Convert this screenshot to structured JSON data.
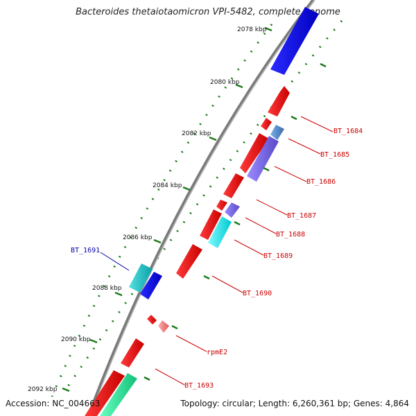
{
  "title": "Bacteroides thetaiotaomicron VPI-5482, complete genome",
  "footer": {
    "accession": "Accession: NC_004663",
    "summary": "Topology: circular; Length: 6,260,361 bp; Genes: 4,864"
  },
  "colors": {
    "backbone": "#888888",
    "tick": "#1a7a1a",
    "label_red": "#cc0000",
    "label_blue": "#0000aa"
  },
  "ticks": [
    {
      "label": "2078 kbp"
    },
    {
      "label": "2080 kbp"
    },
    {
      "label": "2082 kbp"
    },
    {
      "label": "2084 kbp"
    },
    {
      "label": "2086 kbp"
    },
    {
      "label": "2088 kbp"
    },
    {
      "label": "2090 kbp"
    },
    {
      "label": "2092 kbp"
    }
  ],
  "gene_labels": [
    {
      "name": "BT_1684",
      "color": "#cc0000"
    },
    {
      "name": "BT_1685",
      "color": "#cc0000"
    },
    {
      "name": "BT_1686",
      "color": "#cc0000"
    },
    {
      "name": "BT_1687",
      "color": "#cc0000"
    },
    {
      "name": "BT_1688",
      "color": "#cc0000"
    },
    {
      "name": "BT_1689",
      "color": "#cc0000"
    },
    {
      "name": "BT_1690",
      "color": "#cc0000"
    },
    {
      "name": "BT_1691",
      "color": "#0000aa"
    },
    {
      "name": "rpmE2",
      "color": "#cc0000"
    },
    {
      "name": "BT_1693",
      "color": "#cc0000"
    }
  ]
}
